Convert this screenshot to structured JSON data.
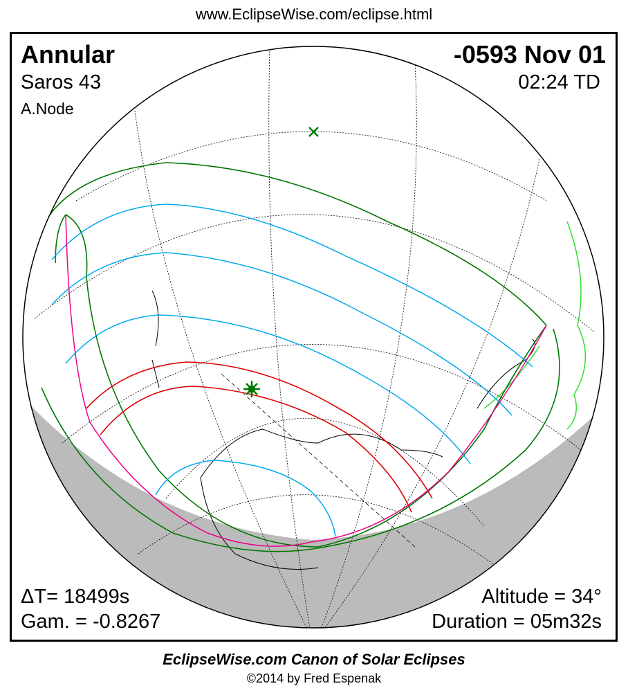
{
  "url": "www.EclipseWise.com/eclipse.html",
  "eclipse_type": "Annular",
  "date": "-0593 Nov 01",
  "saros": "Saros  43",
  "time": "02:24 TD",
  "node": "A.Node",
  "delta_t": "ΔT=  18499s",
  "gamma": "Gam. = -0.8267",
  "altitude": "Altitude = 34°",
  "duration": "Duration = 05m32s",
  "footer_title": "EclipseWise.com Canon of Solar Eclipses",
  "copyright": "©2014 by Fred Espenak",
  "colors": {
    "penumbra": "#007700",
    "central": "#dd0000",
    "magnitude": "#00aaee",
    "limits": "#ee0088",
    "night": "#bbbbbb",
    "land_highlight": "#33dd33"
  }
}
